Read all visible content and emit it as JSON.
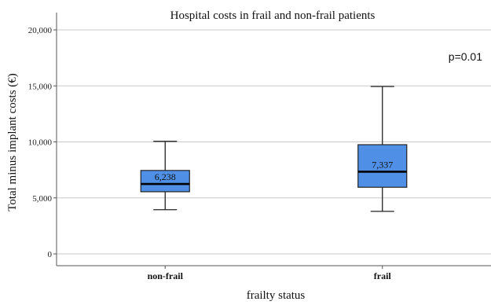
{
  "chart_data": {
    "type": "box",
    "title": "Hospital costs in frail and non-frail patients",
    "xlabel": "frailty status",
    "ylabel": "Total minus implant costs (€)",
    "ylim": [
      -1000,
      21000
    ],
    "yticks": [
      0,
      5000,
      10000,
      15000,
      20000
    ],
    "ytick_labels": [
      "0",
      "5,000",
      "10,000",
      "15,000",
      "20,000"
    ],
    "grid": "horizontal",
    "annotation": "p=0.01",
    "box_color": "#4F8FE6",
    "categories": [
      "non-frail",
      "frail"
    ],
    "boxes": [
      {
        "category": "non-frail",
        "min": 3950,
        "q1": 5550,
        "median": 6238,
        "q3": 7450,
        "max": 10050,
        "median_label": "6,238"
      },
      {
        "category": "frail",
        "min": 3800,
        "q1": 5950,
        "median": 7337,
        "q3": 9750,
        "max": 14950,
        "median_label": "7,337"
      }
    ]
  }
}
